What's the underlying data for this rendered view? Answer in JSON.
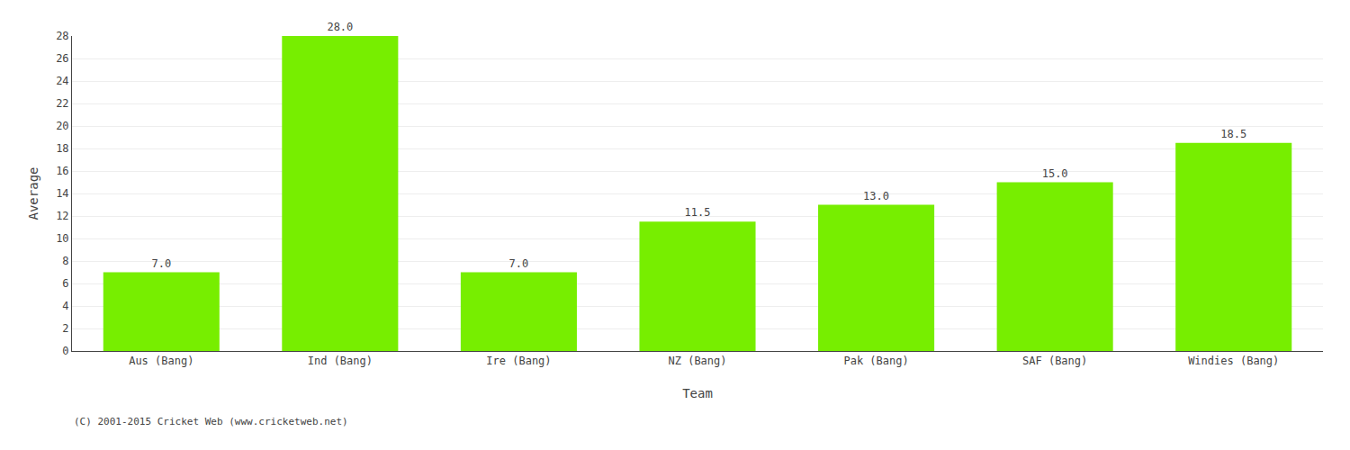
{
  "chart_data": {
    "type": "bar",
    "categories": [
      "Aus (Bang)",
      "Ind (Bang)",
      "Ire (Bang)",
      "NZ (Bang)",
      "Pak (Bang)",
      "SAF (Bang)",
      "Windies (Bang)"
    ],
    "values": [
      7.0,
      28.0,
      7.0,
      11.5,
      13.0,
      15.0,
      18.5
    ],
    "value_labels": [
      "7.0",
      "28.0",
      "7.0",
      "11.5",
      "13.0",
      "15.0",
      "18.5"
    ],
    "data_labels": true,
    "color": "#77ee00",
    "xlabel": "Team",
    "ylabel": "Average",
    "ylim": [
      0,
      28
    ],
    "yticks": [
      0,
      2,
      4,
      6,
      8,
      10,
      12,
      14,
      16,
      18,
      20,
      22,
      24,
      26,
      28
    ],
    "grid": true,
    "annotations": [
      "(C) 2001-2015 Cricket Web (www.cricketweb.net)"
    ]
  }
}
